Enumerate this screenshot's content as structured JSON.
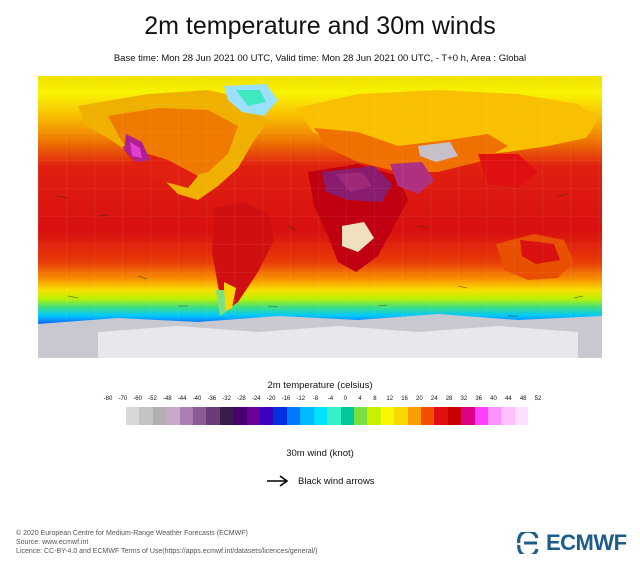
{
  "header": {
    "title": "2m temperature and 30m winds",
    "subtitle": "Base time: Mon 28 Jun 2021 00 UTC, Valid time: Mon 28 Jun 2021 00 UTC, - T+0 h, Area : Global"
  },
  "legend": {
    "temperature_title": "2m temperature (celsius)",
    "ticks": [
      "-80",
      "-70",
      "-60",
      "-52",
      "-48",
      "-44",
      "-40",
      "-36",
      "-32",
      "-28",
      "-24",
      "-20",
      "-16",
      "-12",
      "-8",
      "-4",
      "0",
      "4",
      "8",
      "12",
      "16",
      "20",
      "24",
      "28",
      "32",
      "36",
      "40",
      "44",
      "48",
      "52"
    ],
    "colors": [
      "#d8d8d8",
      "#c4c4c4",
      "#b0b0b0",
      "#c8a8c8",
      "#a87fb0",
      "#8c5a96",
      "#6a3c7a",
      "#3a1c4a",
      "#48006c",
      "#6a0098",
      "#3c00c0",
      "#0030e0",
      "#0078ff",
      "#00b8ff",
      "#00e0ff",
      "#38f0c8",
      "#00c89a",
      "#78e040",
      "#c8f000",
      "#f8f800",
      "#f8d800",
      "#f8a000",
      "#f05000",
      "#e01010",
      "#c80000",
      "#e00088",
      "#ff40ff",
      "#ff90ff",
      "#ffc0ff",
      "#ffe0ff"
    ],
    "wind_title": "30m wind (knot)",
    "wind_item": "Black wind arrows"
  },
  "footer": {
    "copyright": "© 2020 European Centre for Medium-Range Weather Forecasts (ECMWF)",
    "source": "Source: www.ecmwf.int",
    "licence": "Licence: CC-BY-4.0 and ECMWF Terms of Use(https://apps.ecmwf.int/datasets/licences/general/)"
  },
  "logo": {
    "text": "ECMWF",
    "color": "#1c5d8c"
  }
}
